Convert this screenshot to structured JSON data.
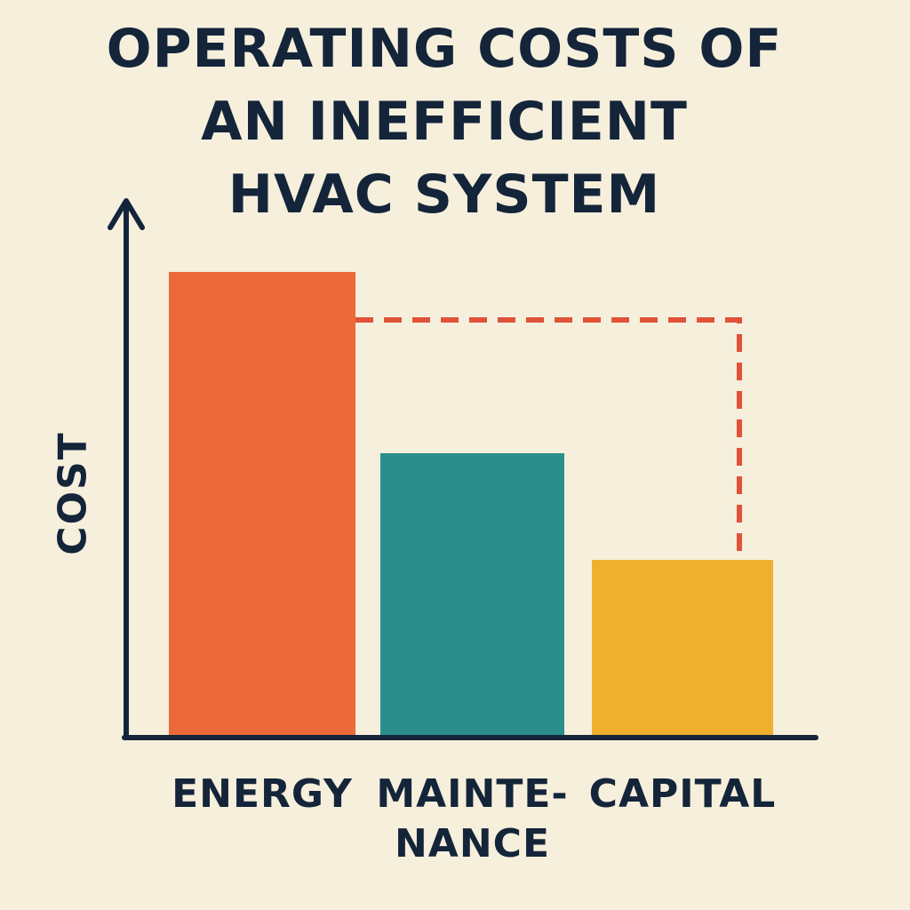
{
  "chart_data": {
    "type": "bar",
    "title": "OPERATING COSTS OF\nAN INEFFICIENT\nHVAC SYSTEM",
    "y_label": "COST",
    "categories": [
      "ENERGY",
      "MAINTE-\nNANCE",
      "CAPITAL"
    ],
    "values": [
      87,
      53,
      33
    ],
    "colors": [
      "#ec6a3a",
      "#2a8f8c",
      "#efb02f"
    ],
    "ylim": [
      0,
      100
    ],
    "reference_value": 78,
    "reference_color": "#e0523a",
    "grid": false
  }
}
